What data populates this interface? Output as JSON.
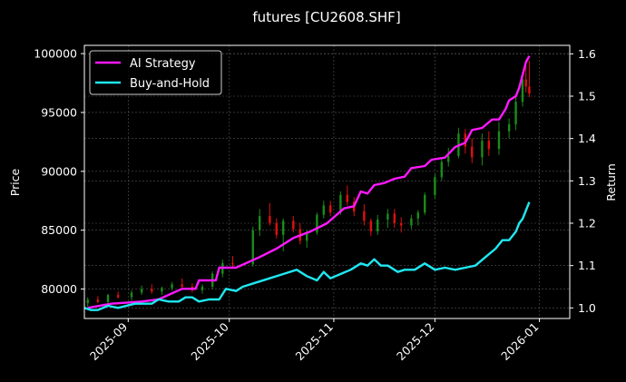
{
  "chart_data": {
    "type": "line",
    "title": "futures [CU2608.SHF]",
    "ylabel_left": "Price",
    "ylabel_right": "Return",
    "x_ticks": [
      "2025-09",
      "2025-10",
      "2025-11",
      "2025-12",
      "2026-01"
    ],
    "y_left_ticks": [
      80000,
      85000,
      90000,
      95000,
      100000
    ],
    "y_right_ticks": [
      1.0,
      1.1,
      1.2,
      1.3,
      1.4,
      1.5,
      1.6
    ],
    "x_range": [
      "2025-08-19",
      "2026-01-10"
    ],
    "y_left_range": [
      77500,
      100700
    ],
    "y_right_range": [
      0.975,
      1.62
    ],
    "grid": true,
    "legend_position": "top-left",
    "colors": {
      "background": "#000000",
      "ai": "#ff19ff",
      "bh": "#1fe8f2",
      "candle_up": "#1a8c1a",
      "candle_down": "#e01010",
      "grid": "#555555"
    },
    "series": [
      {
        "name": "AI Strategy",
        "key": "ai",
        "points": [
          [
            "2025-08-20",
            1.0
          ],
          [
            "2025-08-27",
            1.01
          ],
          [
            "2025-09-05",
            1.015
          ],
          [
            "2025-09-10",
            1.02
          ],
          [
            "2025-09-17",
            1.045
          ],
          [
            "2025-09-21",
            1.045
          ],
          [
            "2025-09-22",
            1.065
          ],
          [
            "2025-09-27",
            1.065
          ],
          [
            "2025-09-28",
            1.095
          ],
          [
            "2025-10-03",
            1.095
          ],
          [
            "2025-10-10",
            1.12
          ],
          [
            "2025-10-15",
            1.14
          ],
          [
            "2025-10-20",
            1.165
          ],
          [
            "2025-10-25",
            1.18
          ],
          [
            "2025-10-30",
            1.2
          ],
          [
            "2025-11-04",
            1.235
          ],
          [
            "2025-11-07",
            1.24
          ],
          [
            "2025-11-09",
            1.275
          ],
          [
            "2025-11-11",
            1.27
          ],
          [
            "2025-11-13",
            1.29
          ],
          [
            "2025-11-16",
            1.295
          ],
          [
            "2025-11-19",
            1.305
          ],
          [
            "2025-11-22",
            1.31
          ],
          [
            "2025-11-24",
            1.33
          ],
          [
            "2025-11-28",
            1.335
          ],
          [
            "2025-11-30",
            1.35
          ],
          [
            "2025-12-04",
            1.355
          ],
          [
            "2025-12-07",
            1.38
          ],
          [
            "2025-12-10",
            1.39
          ],
          [
            "2025-12-12",
            1.42
          ],
          [
            "2025-12-15",
            1.425
          ],
          [
            "2025-12-18",
            1.445
          ],
          [
            "2025-12-20",
            1.445
          ],
          [
            "2025-12-22",
            1.47
          ],
          [
            "2025-12-23",
            1.49
          ],
          [
            "2025-12-25",
            1.5
          ],
          [
            "2025-12-26",
            1.52
          ],
          [
            "2025-12-27",
            1.55
          ],
          [
            "2025-12-28",
            1.58
          ],
          [
            "2025-12-29",
            1.595
          ]
        ]
      },
      {
        "name": "Buy-and-Hold",
        "key": "bh",
        "points": [
          [
            "2025-08-19",
            1.0
          ],
          [
            "2025-08-21",
            0.995
          ],
          [
            "2025-08-23",
            0.995
          ],
          [
            "2025-08-26",
            1.005
          ],
          [
            "2025-08-29",
            1.0
          ],
          [
            "2025-09-03",
            1.01
          ],
          [
            "2025-09-08",
            1.01
          ],
          [
            "2025-09-10",
            1.02
          ],
          [
            "2025-09-13",
            1.015
          ],
          [
            "2025-09-16",
            1.015
          ],
          [
            "2025-09-18",
            1.025
          ],
          [
            "2025-09-20",
            1.025
          ],
          [
            "2025-09-22",
            1.015
          ],
          [
            "2025-09-25",
            1.02
          ],
          [
            "2025-09-28",
            1.02
          ],
          [
            "2025-09-30",
            1.045
          ],
          [
            "2025-10-03",
            1.04
          ],
          [
            "2025-10-05",
            1.05
          ],
          [
            "2025-10-09",
            1.06
          ],
          [
            "2025-10-13",
            1.07
          ],
          [
            "2025-10-17",
            1.08
          ],
          [
            "2025-10-21",
            1.09
          ],
          [
            "2025-10-24",
            1.075
          ],
          [
            "2025-10-27",
            1.065
          ],
          [
            "2025-10-29",
            1.085
          ],
          [
            "2025-10-31",
            1.07
          ],
          [
            "2025-11-03",
            1.08
          ],
          [
            "2025-11-06",
            1.09
          ],
          [
            "2025-11-09",
            1.105
          ],
          [
            "2025-11-11",
            1.1
          ],
          [
            "2025-11-13",
            1.115
          ],
          [
            "2025-11-15",
            1.1
          ],
          [
            "2025-11-17",
            1.1
          ],
          [
            "2025-11-20",
            1.085
          ],
          [
            "2025-11-22",
            1.09
          ],
          [
            "2025-11-25",
            1.09
          ],
          [
            "2025-11-28",
            1.105
          ],
          [
            "2025-12-01",
            1.09
          ],
          [
            "2025-12-04",
            1.095
          ],
          [
            "2025-12-07",
            1.09
          ],
          [
            "2025-12-10",
            1.095
          ],
          [
            "2025-12-13",
            1.1
          ],
          [
            "2025-12-16",
            1.12
          ],
          [
            "2025-12-19",
            1.14
          ],
          [
            "2025-12-21",
            1.16
          ],
          [
            "2025-12-23",
            1.16
          ],
          [
            "2025-12-25",
            1.18
          ],
          [
            "2025-12-26",
            1.2
          ],
          [
            "2025-12-27",
            1.21
          ],
          [
            "2025-12-28",
            1.23
          ],
          [
            "2025-12-29",
            1.25
          ]
        ]
      }
    ],
    "candles": [
      [
        "2025-08-20",
        78800,
        79300,
        78500,
        79100
      ],
      [
        "2025-08-23",
        79100,
        79400,
        78800,
        78900
      ],
      [
        "2025-08-26",
        78900,
        79600,
        78700,
        79500
      ],
      [
        "2025-08-29",
        79500,
        79800,
        79200,
        79300
      ],
      [
        "2025-09-02",
        79300,
        79900,
        79000,
        79700
      ],
      [
        "2025-09-05",
        79700,
        80300,
        79500,
        80000
      ],
      [
        "2025-09-08",
        80000,
        80400,
        79600,
        79800
      ],
      [
        "2025-09-11",
        79800,
        80200,
        79500,
        80100
      ],
      [
        "2025-09-14",
        80100,
        80600,
        79900,
        80400
      ],
      [
        "2025-09-17",
        80400,
        80900,
        80100,
        80200
      ],
      [
        "2025-09-20",
        80200,
        80500,
        79700,
        79900
      ],
      [
        "2025-09-23",
        79900,
        80400,
        79600,
        80200
      ],
      [
        "2025-09-26",
        80200,
        81500,
        80000,
        81300
      ],
      [
        "2025-09-29",
        81300,
        82500,
        81000,
        82200
      ],
      [
        "2025-10-02",
        82200,
        82800,
        81800,
        82100
      ],
      [
        "2025-10-08",
        82100,
        85300,
        81900,
        85000
      ],
      [
        "2025-10-10",
        85000,
        86800,
        84500,
        86200
      ],
      [
        "2025-10-13",
        86200,
        87300,
        85400,
        85600
      ],
      [
        "2025-10-15",
        85600,
        86000,
        84300,
        84600
      ],
      [
        "2025-10-17",
        84600,
        86000,
        83200,
        85800
      ],
      [
        "2025-10-20",
        85800,
        86200,
        84800,
        85100
      ],
      [
        "2025-10-22",
        85100,
        85600,
        83800,
        84100
      ],
      [
        "2025-10-24",
        84100,
        85000,
        83500,
        84800
      ],
      [
        "2025-10-27",
        84800,
        86500,
        84600,
        86300
      ],
      [
        "2025-10-29",
        86300,
        87500,
        86000,
        87100
      ],
      [
        "2025-10-31",
        87100,
        87500,
        86200,
        86500
      ],
      [
        "2025-11-03",
        86500,
        88300,
        86300,
        88000
      ],
      [
        "2025-11-05",
        88000,
        88800,
        87100,
        87400
      ],
      [
        "2025-11-07",
        87400,
        87800,
        86200,
        86600
      ],
      [
        "2025-11-10",
        86600,
        87200,
        85400,
        85800
      ],
      [
        "2025-11-12",
        85800,
        86000,
        84500,
        84900
      ],
      [
        "2025-11-14",
        84900,
        86300,
        84600,
        85900
      ],
      [
        "2025-11-17",
        85900,
        86800,
        85200,
        86400
      ],
      [
        "2025-11-19",
        86400,
        86800,
        85200,
        85600
      ],
      [
        "2025-11-21",
        85600,
        86100,
        84800,
        85400
      ],
      [
        "2025-11-24",
        85400,
        86300,
        85100,
        86000
      ],
      [
        "2025-11-26",
        86000,
        86700,
        85400,
        86500
      ],
      [
        "2025-11-28",
        86500,
        88200,
        86300,
        88000
      ],
      [
        "2025-12-01",
        88000,
        89800,
        87700,
        89500
      ],
      [
        "2025-12-03",
        89500,
        91200,
        89200,
        90800
      ],
      [
        "2025-12-05",
        90800,
        92000,
        90400,
        91300
      ],
      [
        "2025-12-08",
        91300,
        93700,
        91100,
        93200
      ],
      [
        "2025-12-10",
        93200,
        93600,
        91500,
        92100
      ],
      [
        "2025-12-12",
        92100,
        92800,
        90700,
        91200
      ],
      [
        "2025-12-15",
        91200,
        93200,
        90500,
        92600
      ],
      [
        "2025-12-17",
        92600,
        93400,
        91300,
        91900
      ],
      [
        "2025-12-20",
        91900,
        94200,
        91400,
        93400
      ],
      [
        "2025-12-23",
        93400,
        94500,
        92800,
        94000
      ],
      [
        "2025-12-25",
        94000,
        96500,
        93500,
        95900
      ],
      [
        "2025-12-27",
        95900,
        98400,
        95500,
        97800
      ],
      [
        "2025-12-28",
        97800,
        99500,
        96700,
        97200
      ],
      [
        "2025-12-29",
        97200,
        99400,
        96300,
        96600
      ]
    ]
  }
}
